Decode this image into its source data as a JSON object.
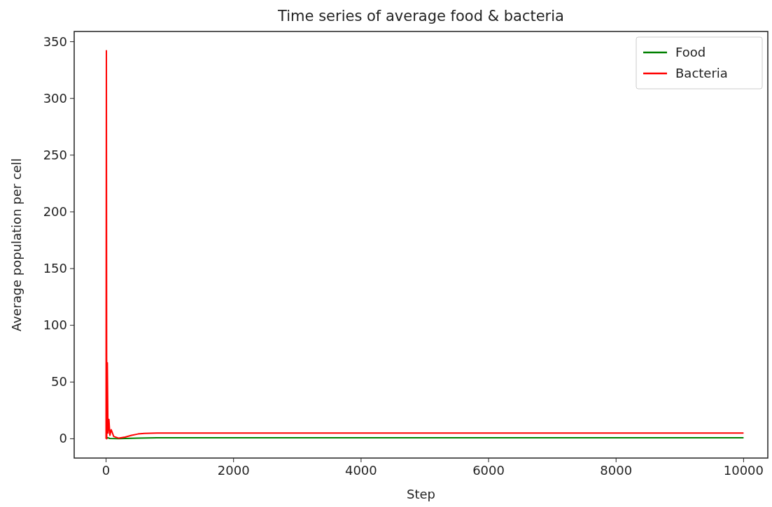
{
  "chart_data": {
    "type": "line",
    "title": "Time series of average food & bacteria",
    "xlabel": "Step",
    "ylabel": "Average population per cell",
    "xlim": [
      -500,
      10380
    ],
    "ylim": [
      -17,
      359
    ],
    "xticks": [
      0,
      2000,
      4000,
      6000,
      8000,
      10000
    ],
    "yticks": [
      0,
      50,
      100,
      150,
      200,
      250,
      300,
      350
    ],
    "grid": false,
    "legend": "top right",
    "series": [
      {
        "name": "Food",
        "color": "#008000",
        "x": [
          5,
          20,
          60,
          200,
          500,
          800,
          2000,
          10000
        ],
        "values": [
          0,
          1,
          0.3,
          0.1,
          0.6,
          0.8,
          0.8,
          0.8
        ]
      },
      {
        "name": "Bacteria",
        "color": "#ff0000",
        "x": [
          0,
          5,
          10,
          20,
          30,
          45,
          60,
          80,
          120,
          200,
          300,
          400,
          500,
          600,
          800,
          2000,
          10000
        ],
        "values": [
          0,
          342,
          0,
          67,
          5,
          17,
          3,
          8,
          2,
          0.5,
          1.5,
          3,
          4.2,
          4.7,
          5,
          5,
          5
        ]
      }
    ]
  }
}
